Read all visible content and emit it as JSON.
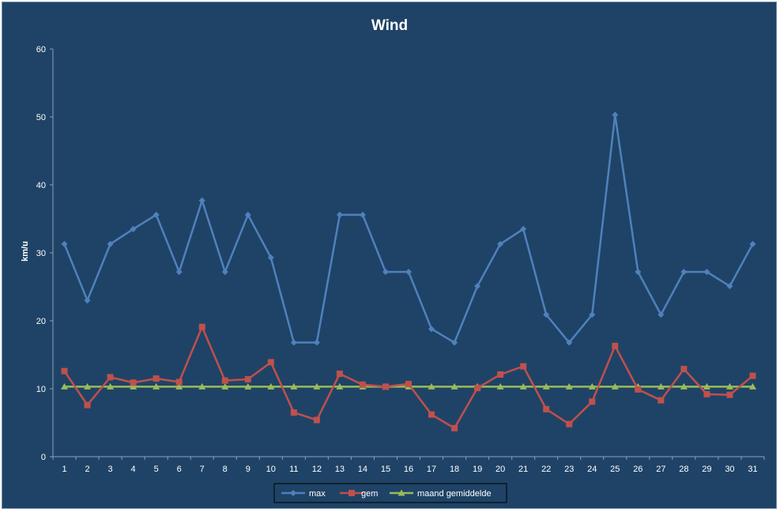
{
  "chart_data": {
    "type": "line",
    "title": "Wind",
    "xlabel": "",
    "ylabel": "km/u",
    "ylim": [
      0,
      60
    ],
    "yticks": [
      0,
      10,
      20,
      30,
      40,
      50,
      60
    ],
    "grid": false,
    "legend_position": "bottom",
    "categories": [
      "1",
      "2",
      "3",
      "4",
      "5",
      "6",
      "7",
      "8",
      "9",
      "10",
      "11",
      "12",
      "13",
      "14",
      "15",
      "16",
      "17",
      "18",
      "19",
      "20",
      "21",
      "22",
      "23",
      "24",
      "25",
      "26",
      "27",
      "28",
      "29",
      "30",
      "31"
    ],
    "series": [
      {
        "name": "max",
        "color": "#4f81bd",
        "marker": "diamond",
        "values": [
          31.3,
          23.0,
          31.3,
          33.5,
          35.6,
          27.2,
          37.7,
          27.2,
          35.6,
          29.3,
          16.8,
          16.8,
          35.6,
          35.6,
          27.2,
          27.2,
          18.8,
          16.8,
          25.1,
          31.3,
          33.5,
          20.9,
          16.8,
          20.9,
          50.3,
          27.2,
          20.9,
          27.2,
          27.2,
          25.1,
          31.3
        ]
      },
      {
        "name": "gem",
        "color": "#c0504d",
        "marker": "square",
        "values": [
          12.6,
          7.6,
          11.7,
          10.9,
          11.5,
          11.0,
          19.1,
          11.2,
          11.4,
          13.9,
          6.5,
          5.4,
          12.2,
          10.6,
          10.3,
          10.7,
          6.2,
          4.2,
          10.1,
          12.1,
          13.3,
          7.0,
          4.8,
          8.1,
          16.3,
          9.9,
          8.3,
          12.9,
          9.2,
          9.1,
          11.9
        ]
      },
      {
        "name": "maand gemiddelde",
        "color": "#9bbb59",
        "marker": "triangle",
        "values": [
          10.3,
          10.3,
          10.3,
          10.3,
          10.3,
          10.3,
          10.3,
          10.3,
          10.3,
          10.3,
          10.3,
          10.3,
          10.3,
          10.3,
          10.3,
          10.3,
          10.3,
          10.3,
          10.3,
          10.3,
          10.3,
          10.3,
          10.3,
          10.3,
          10.3,
          10.3,
          10.3,
          10.3,
          10.3,
          10.3,
          10.3
        ]
      }
    ]
  }
}
